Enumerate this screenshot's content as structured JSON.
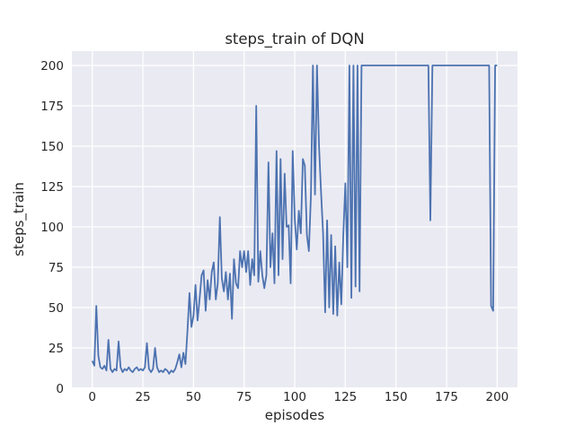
{
  "figure": {
    "kind": "matplotlib-seaborn-darkgrid"
  },
  "chart_data": {
    "type": "line",
    "title": "steps_train of DQN",
    "xlabel": "episodes",
    "ylabel": "steps_train",
    "x_ticks": [
      0,
      25,
      50,
      75,
      100,
      125,
      150,
      175,
      200
    ],
    "y_ticks": [
      0,
      25,
      50,
      75,
      100,
      125,
      150,
      175,
      200
    ],
    "xlim": [
      -10,
      210
    ],
    "ylim": [
      -2,
      209
    ],
    "grid": true,
    "legend": "none",
    "plot_background": "#EAEAF2",
    "grid_color": "#FFFFFF",
    "line_color": "#4C72B0",
    "text_color": "#262626",
    "series": [
      {
        "name": "steps_train",
        "x_start": 0,
        "x_step": 1,
        "values": [
          17,
          14,
          51,
          20,
          13,
          12,
          14,
          11,
          30,
          12,
          10,
          12,
          11,
          29,
          13,
          10,
          12,
          11,
          13,
          11,
          10,
          12,
          13,
          11,
          12,
          11,
          13,
          28,
          12,
          10,
          12,
          25,
          13,
          10,
          11,
          10,
          12,
          11,
          9,
          11,
          10,
          12,
          16,
          21,
          13,
          22,
          15,
          35,
          59,
          38,
          45,
          64,
          42,
          55,
          70,
          73,
          48,
          67,
          55,
          72,
          78,
          55,
          65,
          106,
          68,
          60,
          72,
          55,
          71,
          43,
          80,
          65,
          62,
          85,
          75,
          85,
          72,
          85,
          64,
          80,
          70,
          175,
          66,
          85,
          70,
          62,
          70,
          140,
          75,
          96,
          65,
          147,
          70,
          142,
          80,
          133,
          100,
          101,
          65,
          147,
          105,
          86,
          110,
          96,
          142,
          138,
          95,
          85,
          120,
          200,
          120,
          200,
          150,
          122,
          96,
          47,
          104,
          50,
          95,
          46,
          88,
          45,
          78,
          52,
          95,
          127,
          75,
          200,
          56,
          200,
          63,
          200,
          60,
          200,
          200,
          200,
          200,
          200,
          200,
          200,
          200,
          200,
          200,
          200,
          200,
          200,
          200,
          200,
          200,
          200,
          200,
          200,
          200,
          200,
          200,
          200,
          200,
          200,
          200,
          200,
          200,
          200,
          200,
          200,
          200,
          200,
          200,
          104,
          200,
          200,
          200,
          200,
          200,
          200,
          200,
          200,
          200,
          200,
          200,
          200,
          200,
          200,
          200,
          200,
          200,
          200,
          200,
          200,
          200,
          200,
          200,
          200,
          200,
          200,
          200,
          200,
          200,
          51,
          48,
          200,
          200
        ]
      }
    ]
  }
}
